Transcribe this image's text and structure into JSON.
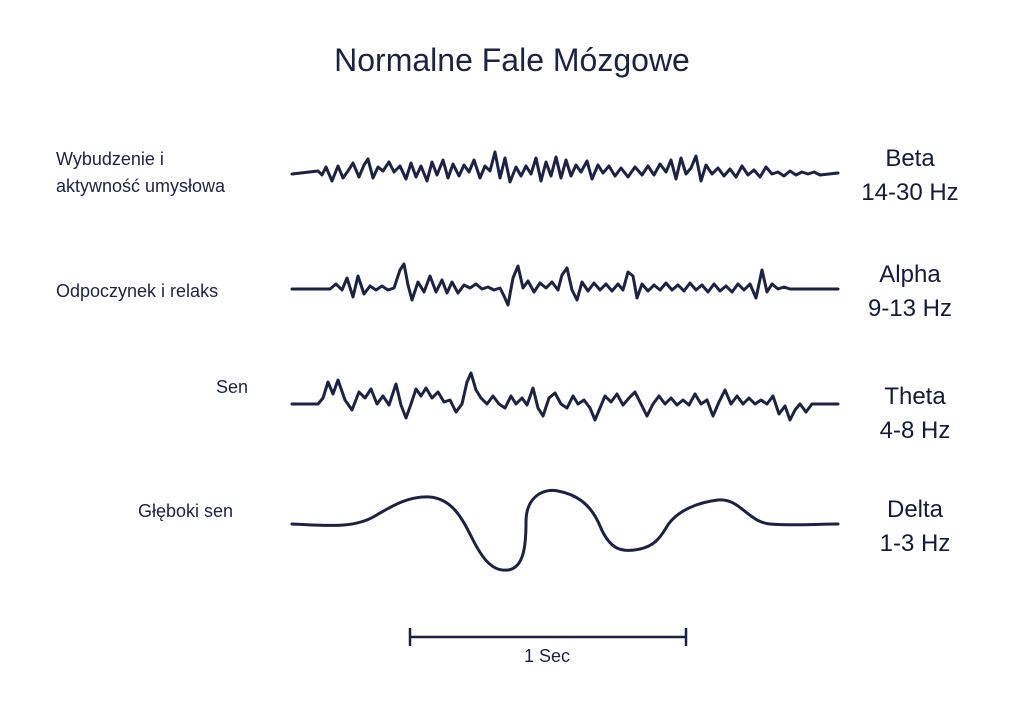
{
  "title": "Normalne Fale Mózgowe",
  "rows": [
    {
      "state_lines": [
        "Wybudzenie i",
        "aktywność umysłowa"
      ],
      "band": "Beta",
      "frequency": "14-30 Hz"
    },
    {
      "state_lines": [
        "Odpoczynek i relaks"
      ],
      "band": "Alpha",
      "frequency": "9-13 Hz"
    },
    {
      "state_lines": [
        "Sen"
      ],
      "band": "Theta",
      "frequency": "4-8 Hz"
    },
    {
      "state_lines": [
        "Głęboki sen"
      ],
      "band": "Delta",
      "frequency": "1-3 Hz"
    }
  ],
  "scale_bar": {
    "label": "1 Sec"
  },
  "colors": {
    "ink": "#1c2245",
    "background": "#ffffff"
  }
}
